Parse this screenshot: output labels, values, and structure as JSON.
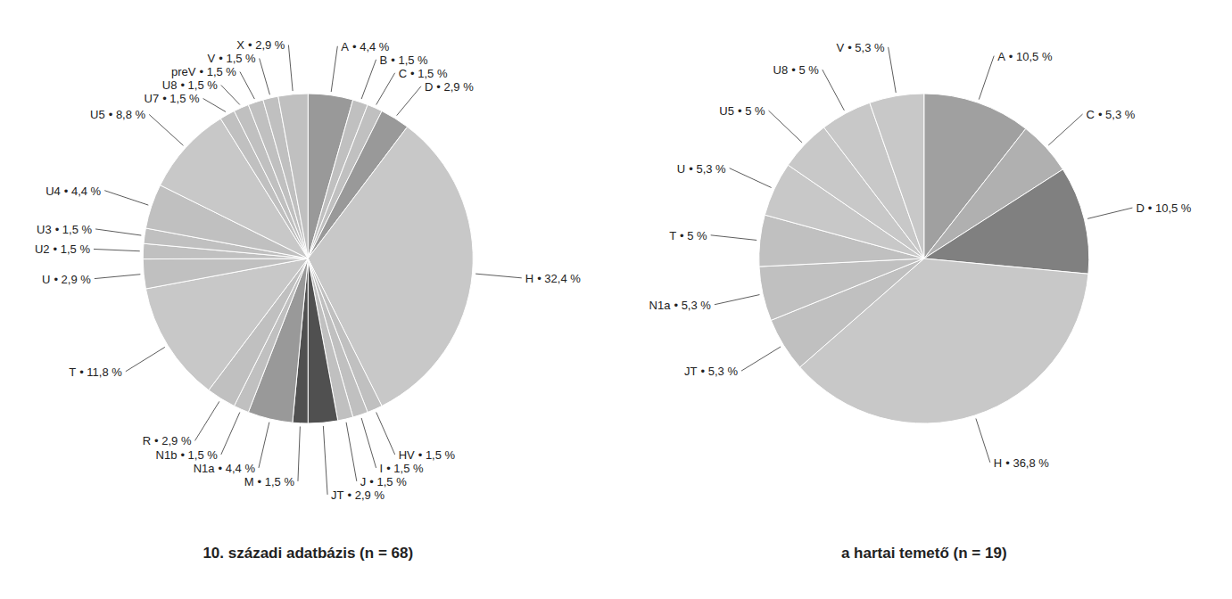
{
  "chart_data": [
    {
      "type": "pie",
      "title": "10. századi adatbázis (n = 68)",
      "categories": [
        "A",
        "B",
        "C",
        "D",
        "H",
        "HV",
        "I",
        "J",
        "JT",
        "M",
        "N1a",
        "N1b",
        "R",
        "T",
        "U",
        "U2",
        "U3",
        "U4",
        "U5",
        "U7",
        "U8",
        "preV",
        "V",
        "X"
      ],
      "values": [
        4.4,
        1.5,
        1.5,
        2.9,
        32.4,
        1.5,
        1.5,
        1.5,
        2.9,
        1.5,
        4.4,
        1.5,
        2.9,
        11.8,
        2.9,
        1.5,
        1.5,
        4.4,
        8.8,
        1.5,
        1.5,
        1.5,
        1.5,
        2.9
      ],
      "value_labels": [
        "• 4,4 %",
        "• 1,5 %",
        "• 1,5 %",
        "• 2,9 %",
        "• 32,4 %",
        "• 1,5 %",
        "• 1,5 %",
        "• 1,5 %",
        "• 2,9 %",
        "• 1,5 %",
        "• 4,4 %",
        "• 1,5 %",
        "• 2,9 %",
        "• 11,8 %",
        "• 2,9 %",
        "• 1,5 %",
        "• 1,5 %",
        "• 4,4 %",
        "• 8,8 %",
        "• 1,5 %",
        "• 1,5 %",
        "• 1,5 %",
        "• 1,5 %",
        "• 2,9 %"
      ],
      "colors": [
        "#999999",
        "#c0c0c0",
        "#c0c0c0",
        "#999999",
        "#c8c8c8",
        "#c0c0c0",
        "#c0c0c0",
        "#c0c0c0",
        "#505050",
        "#505050",
        "#999999",
        "#c0c0c0",
        "#c0c0c0",
        "#c8c8c8",
        "#c0c0c0",
        "#c0c0c0",
        "#c0c0c0",
        "#c0c0c0",
        "#c8c8c8",
        "#c0c0c0",
        "#c0c0c0",
        "#c0c0c0",
        "#c0c0c0",
        "#c0c0c0"
      ],
      "data_labels": true
    },
    {
      "type": "pie",
      "title": "a hartai temető (n = 19)",
      "categories": [
        "A",
        "C",
        "D",
        "H",
        "JT",
        "N1a",
        "T",
        "U",
        "U5",
        "U8",
        "V"
      ],
      "values": [
        10.5,
        5.3,
        10.5,
        36.8,
        5.3,
        5.3,
        5.0,
        5.3,
        5.0,
        5.0,
        5.3
      ],
      "value_labels": [
        "• 10,5 %",
        "• 5,3 %",
        "• 10,5 %",
        "• 36,8 %",
        "• 5,3 %",
        "• 5,3 %",
        "• 5 %",
        "• 5,3 %",
        "• 5 %",
        "• 5 %",
        "• 5,3 %"
      ],
      "colors": [
        "#a0a0a0",
        "#b0b0b0",
        "#808080",
        "#c8c8c8",
        "#c0c0c0",
        "#c0c0c0",
        "#c0c0c0",
        "#c8c8c8",
        "#c8c8c8",
        "#c8c8c8",
        "#c8c8c8"
      ],
      "data_labels": true
    }
  ]
}
